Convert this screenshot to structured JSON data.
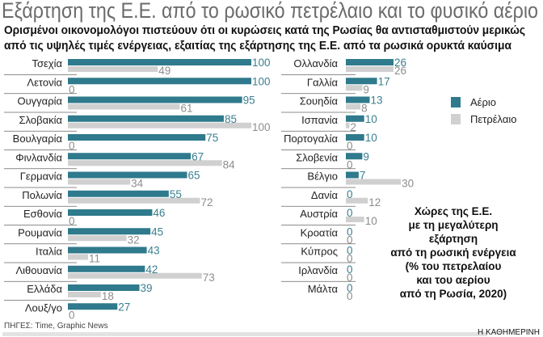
{
  "chart_data": {
    "type": "bar",
    "orientation": "horizontal",
    "title": "Εξάρτηση της Ε.Ε. από το ρωσικό πετρέλαιο και το φυσικό αέριο",
    "subtitle": [
      "Ορισμένοι οικονομολόγοι πιστεύουν ότι οι κυρώσεις κατά της Ρωσίας θα αντισταθμιστούν μερικώς",
      "από τις υψηλές τιμές ενέργειας, εξαιτίας της εξάρτησης της Ε.Ε. από τα ρωσικά ορυκτά καύσιμα"
    ],
    "unit": "%",
    "xlim": [
      0,
      100
    ],
    "legend": {
      "placement": "right",
      "items": [
        "Αέριο",
        "Πετρέλαιο"
      ]
    },
    "colors": {
      "gas": "#2f7a8c",
      "oil": "#d0d0d0"
    },
    "panels": [
      {
        "categories": [
          "Τσεχία",
          "Λετονία",
          "Ουγγαρία",
          "Σλοβακία",
          "Βουλγαρία",
          "Φινλανδία",
          "Γερμανία",
          "Πολωνία",
          "Εσθονία",
          "Ρουμανία",
          "Ιταλία",
          "Λιθουανία",
          "Ελλάδα",
          "Λουξ/γο"
        ],
        "series": [
          {
            "name": "Αέριο",
            "values": [
              100,
              100,
              95,
              85,
              75,
              67,
              65,
              55,
              46,
              45,
              43,
              42,
              39,
              27
            ]
          },
          {
            "name": "Πετρέλαιο",
            "values": [
              49,
              0,
              61,
              100,
              0,
              84,
              34,
              72,
              0,
              32,
              11,
              73,
              18,
              0
            ]
          }
        ]
      },
      {
        "categories": [
          "Ολλανδία",
          "Γαλλία",
          "Σουηδία",
          "Ισπανία",
          "Πορτογαλία",
          "Σλοβενία",
          "Βέλγιο",
          "Δανία",
          "Αυστρία",
          "Κροατία",
          "Κύπρος",
          "Ιρλανδία",
          "Μάλτα"
        ],
        "series": [
          {
            "name": "Αέριο",
            "values": [
              26,
              17,
              13,
              10,
              10,
              9,
              7,
              0,
              0,
              0,
              0,
              0,
              0
            ]
          },
          {
            "name": "Πετρέλαιο",
            "values": [
              26,
              9,
              8,
              2,
              0,
              0,
              30,
              12,
              10,
              0,
              0,
              0,
              0
            ]
          }
        ]
      }
    ],
    "note": [
      "Χώρες της Ε.Ε.",
      "με τη μεγαλύτερη",
      "εξάρτηση",
      "από τη ρωσική ενέργεια",
      "(% του πετρελαίου",
      "και του αερίου",
      "από τη Ρωσία, 2020)"
    ],
    "source": "ΠΗΓΕΣ: Time, Graphic News",
    "credit": "Η ΚΑΘΗΜΕΡΙΝΗ"
  }
}
